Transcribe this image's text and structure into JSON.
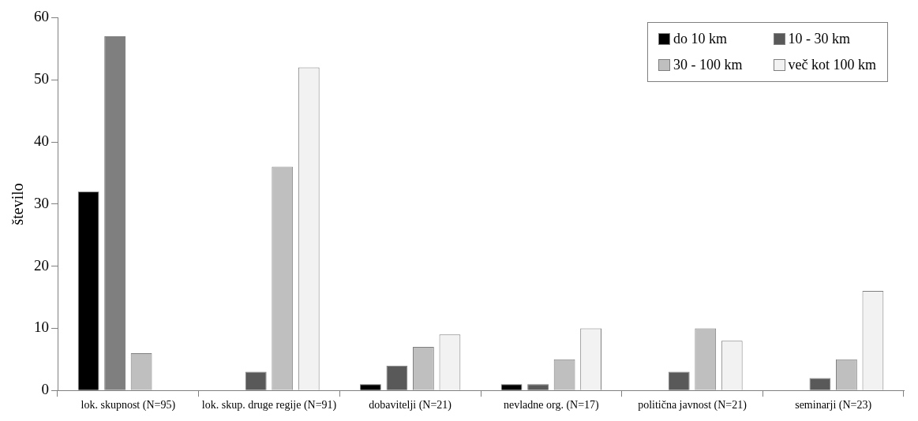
{
  "chart_data": {
    "type": "bar",
    "ylabel": "število",
    "categories": [
      "lok. skupnost (N=95)",
      "lok. skup. druge regije (N=91)",
      "dobavitelji (N=21)",
      "nevladne org. (N=17)",
      "politična javnost (N=21)",
      "seminarji (N=23)"
    ],
    "series": [
      {
        "name": "do 10 km",
        "color": "#000000",
        "values": [
          32,
          0,
          1,
          1,
          0,
          0
        ]
      },
      {
        "name": "10 - 30 km",
        "color": "#595959",
        "colors": [
          "#7f7f7f",
          "#595959",
          "#595959",
          "#595959",
          "#595959",
          "#595959"
        ],
        "values": [
          57,
          3,
          4,
          1,
          3,
          2
        ]
      },
      {
        "name": "30 - 100 km",
        "color": "#bfbfbf",
        "values": [
          6,
          36,
          7,
          5,
          10,
          5
        ]
      },
      {
        "name": "več kot 100 km",
        "color": "#f2f2f2",
        "values": [
          0,
          52,
          9,
          10,
          8,
          16
        ]
      }
    ],
    "ylim": [
      0,
      60
    ],
    "yticks": [
      0,
      10,
      20,
      30,
      40,
      50,
      60
    ],
    "grid": false,
    "legend": "top right"
  }
}
